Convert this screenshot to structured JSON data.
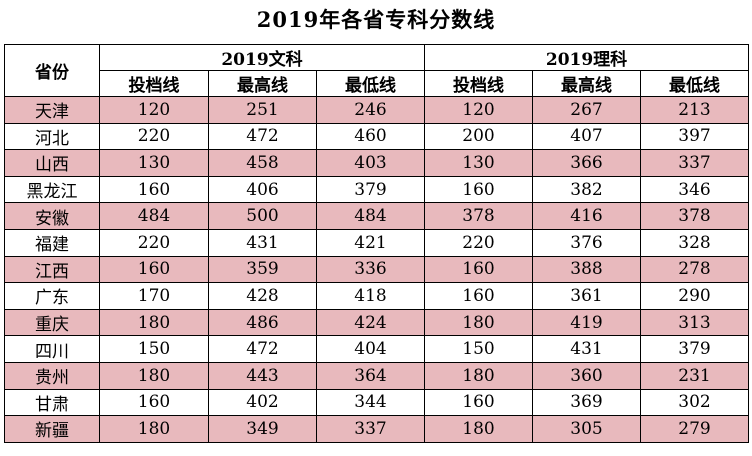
{
  "title": "2019年各省专科分数线",
  "header": {
    "province": "省份",
    "group_wen": "2019文科",
    "group_li": "2019理科",
    "col_toudang": "投档线",
    "col_zuigao": "最高线",
    "col_zuidi": "最低线"
  },
  "rows": [
    {
      "province": "天津",
      "wen": [
        "120",
        "251",
        "246"
      ],
      "li": [
        "120",
        "267",
        "213"
      ]
    },
    {
      "province": "河北",
      "wen": [
        "220",
        "472",
        "460"
      ],
      "li": [
        "200",
        "407",
        "397"
      ]
    },
    {
      "province": "山西",
      "wen": [
        "130",
        "458",
        "403"
      ],
      "li": [
        "130",
        "366",
        "337"
      ]
    },
    {
      "province": "黑龙江",
      "wen": [
        "160",
        "406",
        "379"
      ],
      "li": [
        "160",
        "382",
        "346"
      ]
    },
    {
      "province": "安徽",
      "wen": [
        "484",
        "500",
        "484"
      ],
      "li": [
        "378",
        "416",
        "378"
      ]
    },
    {
      "province": "福建",
      "wen": [
        "220",
        "431",
        "421"
      ],
      "li": [
        "220",
        "376",
        "328"
      ]
    },
    {
      "province": "江西",
      "wen": [
        "160",
        "359",
        "336"
      ],
      "li": [
        "160",
        "388",
        "278"
      ]
    },
    {
      "province": "广东",
      "wen": [
        "170",
        "428",
        "418"
      ],
      "li": [
        "160",
        "361",
        "290"
      ]
    },
    {
      "province": "重庆",
      "wen": [
        "180",
        "486",
        "424"
      ],
      "li": [
        "180",
        "419",
        "313"
      ]
    },
    {
      "province": "四川",
      "wen": [
        "150",
        "472",
        "404"
      ],
      "li": [
        "150",
        "431",
        "379"
      ]
    },
    {
      "province": "贵州",
      "wen": [
        "180",
        "443",
        "364"
      ],
      "li": [
        "180",
        "360",
        "231"
      ]
    },
    {
      "province": "甘肃",
      "wen": [
        "160",
        "402",
        "344"
      ],
      "li": [
        "160",
        "369",
        "302"
      ]
    },
    {
      "province": "新疆",
      "wen": [
        "180",
        "349",
        "337"
      ],
      "li": [
        "180",
        "305",
        "279"
      ]
    }
  ],
  "colors": {
    "shaded_row": "#e8b9bd",
    "border": "#000000"
  }
}
